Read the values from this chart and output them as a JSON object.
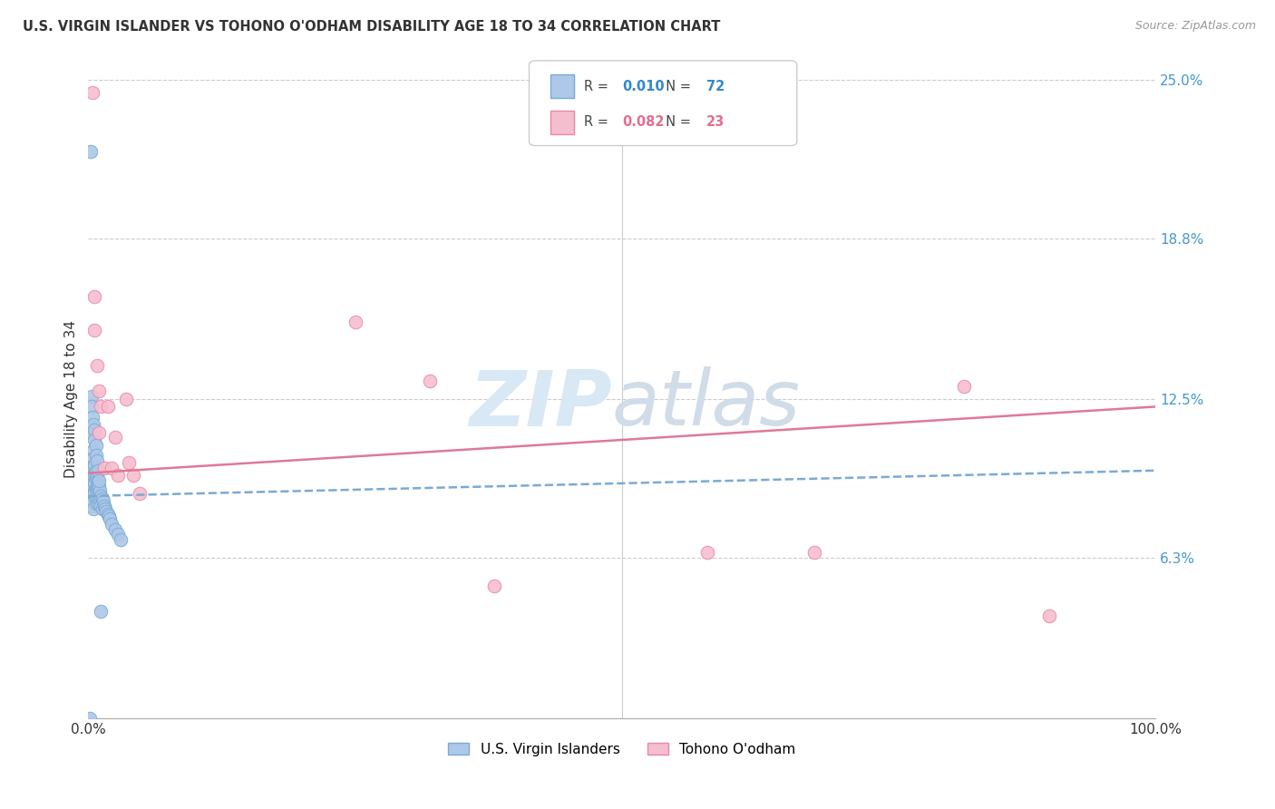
{
  "title": "U.S. VIRGIN ISLANDER VS TOHONO O'ODHAM DISABILITY AGE 18 TO 34 CORRELATION CHART",
  "source": "Source: ZipAtlas.com",
  "ylabel": "Disability Age 18 to 34",
  "xlim": [
    0,
    1.0
  ],
  "ylim": [
    0,
    0.25
  ],
  "ytick_positions": [
    0.0,
    0.063,
    0.125,
    0.188,
    0.25
  ],
  "ytick_labels": [
    "",
    "6.3%",
    "12.5%",
    "18.8%",
    "25.0%"
  ],
  "blue_label": "U.S. Virgin Islanders",
  "pink_label": "Tohono O'odham",
  "blue_R": "0.010",
  "blue_N": "72",
  "pink_R": "0.082",
  "pink_N": "23",
  "blue_color": "#adc8e8",
  "blue_edge": "#78aad4",
  "pink_color": "#f5bece",
  "pink_edge": "#e888a8",
  "blue_line_color": "#7aaad4",
  "pink_line_color": "#e07898",
  "watermark_zip": "ZIP",
  "watermark_atlas": "atlas",
  "background_color": "#ffffff",
  "blue_x": [
    0.002,
    0.002,
    0.002,
    0.002,
    0.002,
    0.003,
    0.003,
    0.003,
    0.003,
    0.004,
    0.004,
    0.004,
    0.004,
    0.004,
    0.005,
    0.005,
    0.005,
    0.005,
    0.005,
    0.005,
    0.005,
    0.005,
    0.006,
    0.006,
    0.006,
    0.006,
    0.007,
    0.007,
    0.007,
    0.007,
    0.008,
    0.008,
    0.008,
    0.008,
    0.009,
    0.009,
    0.009,
    0.01,
    0.01,
    0.01,
    0.011,
    0.011,
    0.012,
    0.012,
    0.013,
    0.013,
    0.014,
    0.015,
    0.016,
    0.017,
    0.018,
    0.019,
    0.02,
    0.022,
    0.025,
    0.028,
    0.03,
    0.003,
    0.003,
    0.004,
    0.005,
    0.005,
    0.006,
    0.006,
    0.007,
    0.007,
    0.008,
    0.009,
    0.01,
    0.012,
    0.001,
    0.002
  ],
  "blue_y": [
    0.098,
    0.095,
    0.092,
    0.088,
    0.085,
    0.093,
    0.09,
    0.087,
    0.083,
    0.099,
    0.096,
    0.091,
    0.088,
    0.084,
    0.105,
    0.102,
    0.098,
    0.095,
    0.091,
    0.088,
    0.085,
    0.082,
    0.099,
    0.096,
    0.092,
    0.088,
    0.097,
    0.094,
    0.09,
    0.086,
    0.095,
    0.091,
    0.088,
    0.084,
    0.093,
    0.09,
    0.086,
    0.091,
    0.088,
    0.084,
    0.089,
    0.086,
    0.087,
    0.083,
    0.086,
    0.082,
    0.085,
    0.083,
    0.082,
    0.081,
    0.08,
    0.079,
    0.078,
    0.076,
    0.074,
    0.072,
    0.07,
    0.126,
    0.122,
    0.118,
    0.115,
    0.111,
    0.113,
    0.109,
    0.107,
    0.103,
    0.101,
    0.097,
    0.093,
    0.042,
    0.0,
    0.222
  ],
  "pink_x": [
    0.004,
    0.006,
    0.006,
    0.008,
    0.01,
    0.01,
    0.012,
    0.015,
    0.018,
    0.022,
    0.025,
    0.028,
    0.035,
    0.038,
    0.042,
    0.048,
    0.25,
    0.32,
    0.38,
    0.58,
    0.68,
    0.82,
    0.9
  ],
  "pink_y": [
    0.245,
    0.165,
    0.152,
    0.138,
    0.128,
    0.112,
    0.122,
    0.098,
    0.122,
    0.098,
    0.11,
    0.095,
    0.125,
    0.1,
    0.095,
    0.088,
    0.155,
    0.132,
    0.052,
    0.065,
    0.065,
    0.13,
    0.04
  ],
  "blue_trend_x": [
    0.0,
    1.0
  ],
  "blue_trend_y": [
    0.087,
    0.097
  ],
  "pink_trend_x": [
    0.0,
    1.0
  ],
  "pink_trend_y": [
    0.096,
    0.122
  ]
}
